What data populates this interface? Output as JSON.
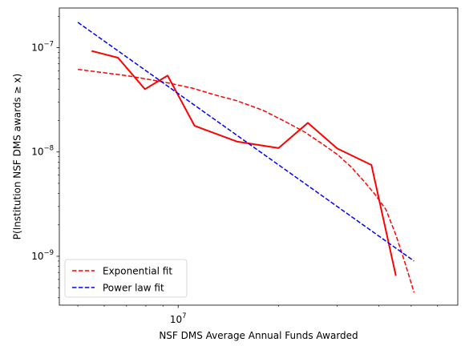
{
  "chart_data": {
    "type": "line",
    "xlabel": "NSF DMS Average Annual Funds Awarded",
    "ylabel": "P(Institution NSF DMS awards ≥ x)",
    "xscale": "log",
    "yscale": "log",
    "xlim": [
      4400000,
      69000000
    ],
    "ylim": [
      3.4e-10,
      2.4e-07
    ],
    "x_ticks": [
      {
        "value": 10000000,
        "base": "10",
        "exp": "7"
      }
    ],
    "y_ticks": [
      {
        "value": 1e-07,
        "base": "10",
        "exp": "−7"
      },
      {
        "value": 1e-08,
        "base": "10",
        "exp": "−8"
      },
      {
        "value": 1e-09,
        "base": "10",
        "exp": "−9"
      }
    ],
    "grid": false,
    "legend_position": "lower-left",
    "series": [
      {
        "role": "data",
        "color": "#ff0000",
        "style": "solid",
        "x": [
          5500000,
          6600000,
          7950000,
          9300000,
          11200000,
          15000000,
          20000000,
          24500000,
          30000000,
          38000000,
          45000000
        ],
        "y": [
          9.3e-08,
          8e-08,
          4e-08,
          5.4e-08,
          1.78e-08,
          1.26e-08,
          1.09e-08,
          1.9e-08,
          1.08e-08,
          7.5e-09,
          6.5e-10
        ]
      },
      {
        "name": "Exponential fit",
        "color": "#ff0000",
        "style": "dashed",
        "x": [
          5000000,
          7000000,
          9000000,
          11000000,
          13000000,
          15000000,
          18000000,
          21000000,
          24000000,
          27000000,
          30000000,
          33000000,
          36000000,
          39000000,
          42000000,
          45000000,
          48000000,
          51000000
        ],
        "y": [
          6.2e-08,
          5.4e-08,
          4.7e-08,
          4.1e-08,
          3.5e-08,
          3.1e-08,
          2.5e-08,
          1.95e-08,
          1.55e-08,
          1.2e-08,
          9.5e-09,
          7.2e-09,
          5.3e-09,
          3.9e-09,
          2.8e-09,
          1.6e-09,
          8.5e-10,
          4.5e-10
        ]
      },
      {
        "name": "Power law fit",
        "color": "#0000ff",
        "style": "dashed",
        "x": [
          5000000,
          51000000
        ],
        "y": [
          1.75e-07,
          9e-10
        ]
      }
    ]
  }
}
